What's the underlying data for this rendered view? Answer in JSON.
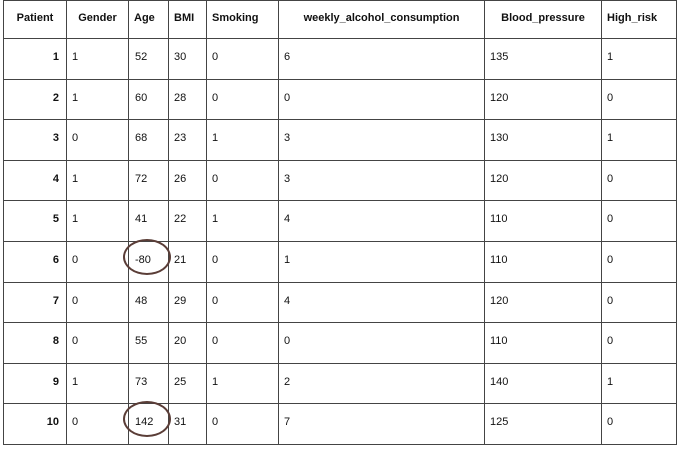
{
  "table": {
    "headers": [
      "Patient",
      "Gender",
      "Age",
      "BMI",
      "Smoking",
      "weekly_alcohol_consumption",
      "Blood_pressure",
      "High_risk"
    ],
    "rows": [
      [
        "1",
        "1",
        "52",
        "30",
        "0",
        "6",
        "135",
        "1"
      ],
      [
        "2",
        "1",
        "60",
        "28",
        "0",
        "0",
        "120",
        "0"
      ],
      [
        "3",
        "0",
        "68",
        "23",
        "1",
        "3",
        "130",
        "1"
      ],
      [
        "4",
        "1",
        "72",
        "26",
        "0",
        "3",
        "120",
        "0"
      ],
      [
        "5",
        "1",
        "41",
        "22",
        "1",
        "4",
        "110",
        "0"
      ],
      [
        "6",
        "0",
        "-80",
        "21",
        "0",
        "1",
        "110",
        "0"
      ],
      [
        "7",
        "0",
        "48",
        "29",
        "0",
        "4",
        "120",
        "0"
      ],
      [
        "8",
        "0",
        "55",
        "20",
        "0",
        "0",
        "110",
        "0"
      ],
      [
        "9",
        "1",
        "73",
        "25",
        "1",
        "2",
        "140",
        "1"
      ],
      [
        "10",
        "0",
        "142",
        "31",
        "0",
        "7",
        "125",
        "0"
      ]
    ],
    "circled_values": [
      {
        "patient": "6",
        "column": "Age",
        "value": "-80"
      },
      {
        "patient": "10",
        "column": "Age",
        "value": "142"
      }
    ],
    "circle_color": "#5a3d37"
  }
}
